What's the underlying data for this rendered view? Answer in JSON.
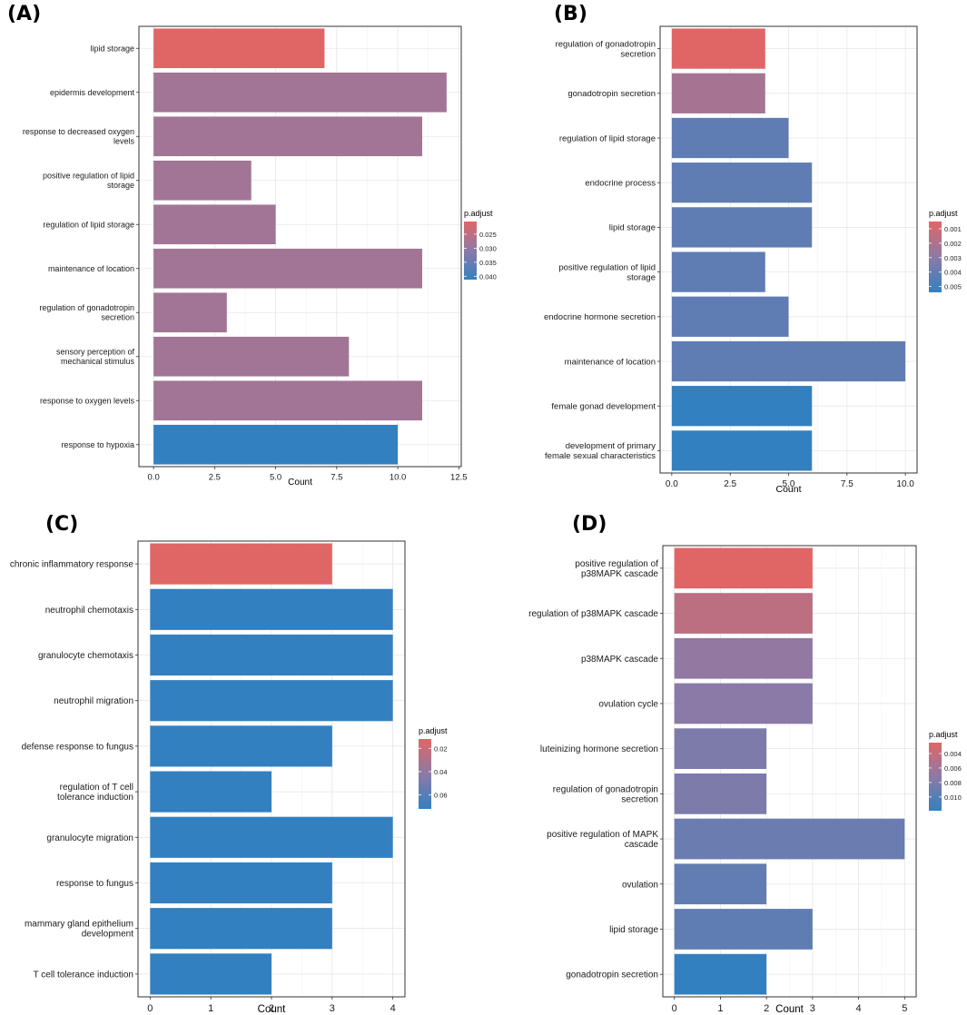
{
  "colors": {
    "high": "#E06666",
    "low": "#3380C0",
    "mid": "#8C7AA6"
  },
  "chart_data": [
    {
      "panel": "(A)",
      "type": "bar",
      "orientation": "horizontal",
      "xlabel": "Count",
      "xlim": [
        -0.6,
        12.6
      ],
      "xticks": [
        0,
        2.5,
        5,
        7.5,
        10,
        12.5
      ],
      "xtick_labels": [
        "0.0",
        "2.5",
        "5.0",
        "7.5",
        "10.0",
        "12.5"
      ],
      "categories": [
        [
          "lipid storage"
        ],
        [
          "epidermis development"
        ],
        [
          "response to decreased oxygen",
          "levels"
        ],
        [
          "positive regulation of lipid",
          "storage"
        ],
        [
          "regulation of lipid storage"
        ],
        [
          "maintenance of location"
        ],
        [
          "regulation of gonadotropin",
          "secretion"
        ],
        [
          "sensory perception of",
          "mechanical stimulus"
        ],
        [
          "response to oxygen levels"
        ],
        [
          "response to hypoxia"
        ]
      ],
      "values": [
        7,
        12,
        11,
        4,
        5,
        11,
        3,
        8,
        11,
        10
      ],
      "p_adjust": [
        0.0205,
        0.0282,
        0.0282,
        0.0282,
        0.0282,
        0.0282,
        0.0282,
        0.0282,
        0.0282,
        0.0412
      ],
      "legend": {
        "title": "p.adjust",
        "min": 0.0205,
        "max": 0.0412,
        "ticks": [
          0.025,
          0.03,
          0.035,
          0.04
        ],
        "tick_labels": [
          "0.025",
          "0.030",
          "0.035",
          "0.040"
        ]
      }
    },
    {
      "panel": "(B)",
      "type": "bar",
      "orientation": "horizontal",
      "xlabel": "Count",
      "xlim": [
        -0.5,
        10.5
      ],
      "xticks": [
        0,
        2.5,
        5,
        7.5,
        10
      ],
      "xtick_labels": [
        "0.0",
        "2.5",
        "5.0",
        "7.5",
        "10.0"
      ],
      "categories": [
        [
          "regulation of gonadotropin",
          "secretion"
        ],
        [
          "gonadotropin secretion"
        ],
        [
          "regulation of lipid storage"
        ],
        [
          "endocrine process"
        ],
        [
          "lipid storage"
        ],
        [
          "positive regulation of lipid",
          "storage"
        ],
        [
          "endocrine hormone secretion"
        ],
        [
          "maintenance of location"
        ],
        [
          "female gonad development"
        ],
        [
          "development of primary",
          "female sexual characteristics"
        ]
      ],
      "values": [
        4,
        4,
        5,
        6,
        6,
        4,
        5,
        10,
        6,
        6
      ],
      "p_adjust": [
        0.0005,
        0.0022,
        0.0042,
        0.0042,
        0.0042,
        0.0042,
        0.0042,
        0.0042,
        0.0054,
        0.0054
      ],
      "legend": {
        "title": "p.adjust",
        "min": 0.0005,
        "max": 0.0054,
        "ticks": [
          0.001,
          0.002,
          0.003,
          0.004,
          0.005
        ],
        "tick_labels": [
          "0.001",
          "0.002",
          "0.003",
          "0.004",
          "0.005"
        ]
      }
    },
    {
      "panel": "(C)",
      "type": "bar",
      "orientation": "horizontal",
      "xlabel": "Count",
      "xlim": [
        -0.2,
        4.2
      ],
      "xticks": [
        0,
        1,
        2,
        3,
        4
      ],
      "xtick_labels": [
        "0",
        "1",
        "2",
        "3",
        "4"
      ],
      "categories": [
        [
          "chronic inflammatory response"
        ],
        [
          "neutrophil chemotaxis"
        ],
        [
          "granulocyte chemotaxis"
        ],
        [
          "neutrophil migration"
        ],
        [
          "defense response to fungus"
        ],
        [
          "regulation of T cell",
          "tolerance induction"
        ],
        [
          "granulocyte migration"
        ],
        [
          "response to fungus"
        ],
        [
          "mammary gland epithelium",
          "development"
        ],
        [
          "T cell tolerance induction"
        ]
      ],
      "values": [
        3,
        4,
        4,
        4,
        3,
        2,
        4,
        3,
        3,
        2
      ],
      "p_adjust": [
        0.012,
        0.072,
        0.072,
        0.072,
        0.072,
        0.072,
        0.072,
        0.072,
        0.072,
        0.072
      ],
      "legend": {
        "title": "p.adjust",
        "min": 0.012,
        "max": 0.072,
        "ticks": [
          0.02,
          0.04,
          0.06
        ],
        "tick_labels": [
          "0.02",
          "0.04",
          "0.06"
        ]
      }
    },
    {
      "panel": "(D)",
      "type": "bar",
      "orientation": "horizontal",
      "xlabel": "Count",
      "xlim": [
        -0.25,
        5.25
      ],
      "xticks": [
        0,
        1,
        2,
        3,
        4,
        5
      ],
      "xtick_labels": [
        "0",
        "1",
        "2",
        "3",
        "4",
        "5"
      ],
      "categories": [
        [
          "positive regulation of",
          "p38MAPK cascade"
        ],
        [
          "regulation of p38MAPK cascade"
        ],
        [
          "p38MAPK cascade"
        ],
        [
          "ovulation cycle"
        ],
        [
          "luteinizing hormone secretion"
        ],
        [
          "regulation of gonadotropin",
          "secretion"
        ],
        [
          "positive regulation of MAPK",
          "cascade"
        ],
        [
          "ovulation"
        ],
        [
          "lipid storage"
        ],
        [
          "gonadotropin secretion"
        ]
      ],
      "values": [
        3,
        3,
        3,
        3,
        2,
        2,
        5,
        2,
        3,
        2
      ],
      "p_adjust": [
        0.0025,
        0.0045,
        0.0068,
        0.0073,
        0.008,
        0.008,
        0.009,
        0.0094,
        0.0095,
        0.0119
      ],
      "legend": {
        "title": "p.adjust",
        "min": 0.0025,
        "max": 0.0119,
        "ticks": [
          0.004,
          0.006,
          0.008,
          0.01
        ],
        "tick_labels": [
          "0.004",
          "0.006",
          "0.008",
          "0.010"
        ]
      }
    }
  ]
}
